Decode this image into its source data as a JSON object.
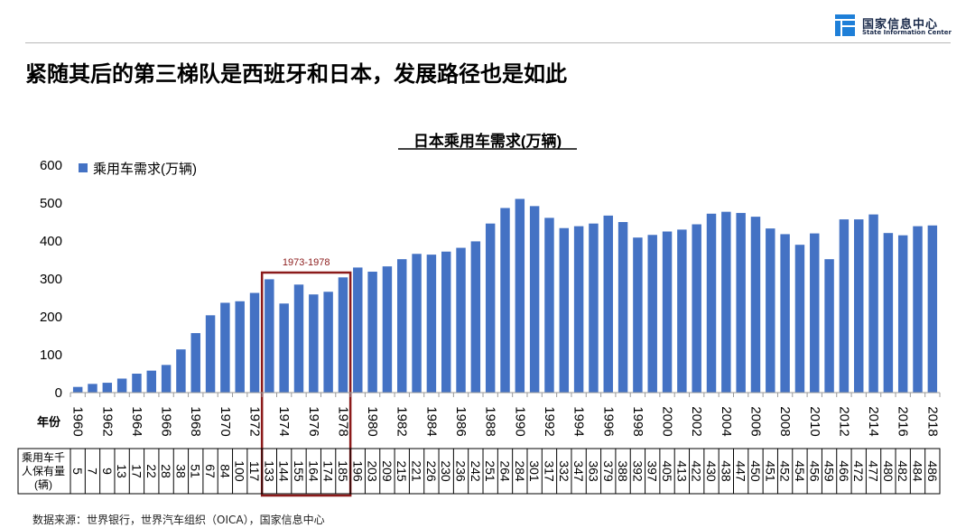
{
  "logo": {
    "name_cn": "国家信息中心",
    "name_en": "State Information Center",
    "icon": "sic-logo-mark",
    "brand_color": "#1E7FD8"
  },
  "headline": "紧随其后的第三梯队是西班牙和日本，发展路径也是如此",
  "source": "数据来源：世界银行，世界汽车组织（OICA），国家信息中心",
  "chart_data": {
    "type": "bar",
    "title": "日本乘用车需求(万辆)",
    "legend": {
      "label": "乘用车需求(万辆)",
      "position": "top-left"
    },
    "bar_color": "#4472C4",
    "ylim": [
      0,
      600
    ],
    "yticks": [
      0,
      100,
      200,
      300,
      400,
      500,
      600
    ],
    "x_row_label": "年份",
    "x": [
      1960,
      1961,
      1962,
      1963,
      1964,
      1965,
      1966,
      1967,
      1968,
      1969,
      1970,
      1971,
      1972,
      1973,
      1974,
      1975,
      1976,
      1977,
      1978,
      1979,
      1980,
      1981,
      1982,
      1983,
      1984,
      1985,
      1986,
      1987,
      1988,
      1989,
      1990,
      1991,
      1992,
      1993,
      1994,
      1995,
      1996,
      1997,
      1998,
      1999,
      2000,
      2001,
      2002,
      2003,
      2004,
      2005,
      2006,
      2007,
      2008,
      2009,
      2010,
      2011,
      2012,
      2013,
      2014,
      2015,
      2016,
      2017,
      2018
    ],
    "x_tick_labels": [
      "1960",
      "1962",
      "1964",
      "1966",
      "1968",
      "1970",
      "1972",
      "1974",
      "1976",
      "1978",
      "1980",
      "1982",
      "1984",
      "1986",
      "1988",
      "1990",
      "1992",
      "1994",
      "1996",
      "1998",
      "2000",
      "2002",
      "2004",
      "2006",
      "2008",
      "2010",
      "2012",
      "2014",
      "2016",
      "2018"
    ],
    "series": [
      {
        "name": "乘用车需求(万辆)",
        "values": [
          15,
          23,
          26,
          37,
          50,
          58,
          73,
          114,
          157,
          204,
          237,
          241,
          263,
          299,
          235,
          285,
          259,
          266,
          304,
          330,
          319,
          333,
          352,
          366,
          364,
          372,
          382,
          399,
          446,
          487,
          511,
          492,
          461,
          434,
          439,
          446,
          467,
          450,
          409,
          416,
          425,
          430,
          444,
          472,
          477,
          474,
          464,
          433,
          418,
          390,
          420,
          352,
          457,
          457,
          470,
          421,
          415,
          439,
          441
        ]
      }
    ],
    "ownership_row": {
      "label_lines": [
        "乘用车千",
        "人保有量",
        "(辆)"
      ],
      "values": [
        5,
        7,
        9,
        13,
        17,
        22,
        28,
        38,
        51,
        67,
        84,
        100,
        117,
        133,
        144,
        155,
        164,
        174,
        185,
        196,
        203,
        209,
        215,
        221,
        226,
        230,
        236,
        242,
        251,
        264,
        284,
        301,
        317,
        332,
        347,
        363,
        379,
        388,
        392,
        397,
        405,
        413,
        422,
        430,
        438,
        447,
        450,
        451,
        452,
        454,
        456,
        459,
        466,
        472,
        477,
        480,
        482,
        484,
        486
      ]
    },
    "annotation": {
      "label": "1973-1978",
      "from_year": 1973,
      "to_year": 1978,
      "box_color": "#8B1A1A"
    }
  }
}
